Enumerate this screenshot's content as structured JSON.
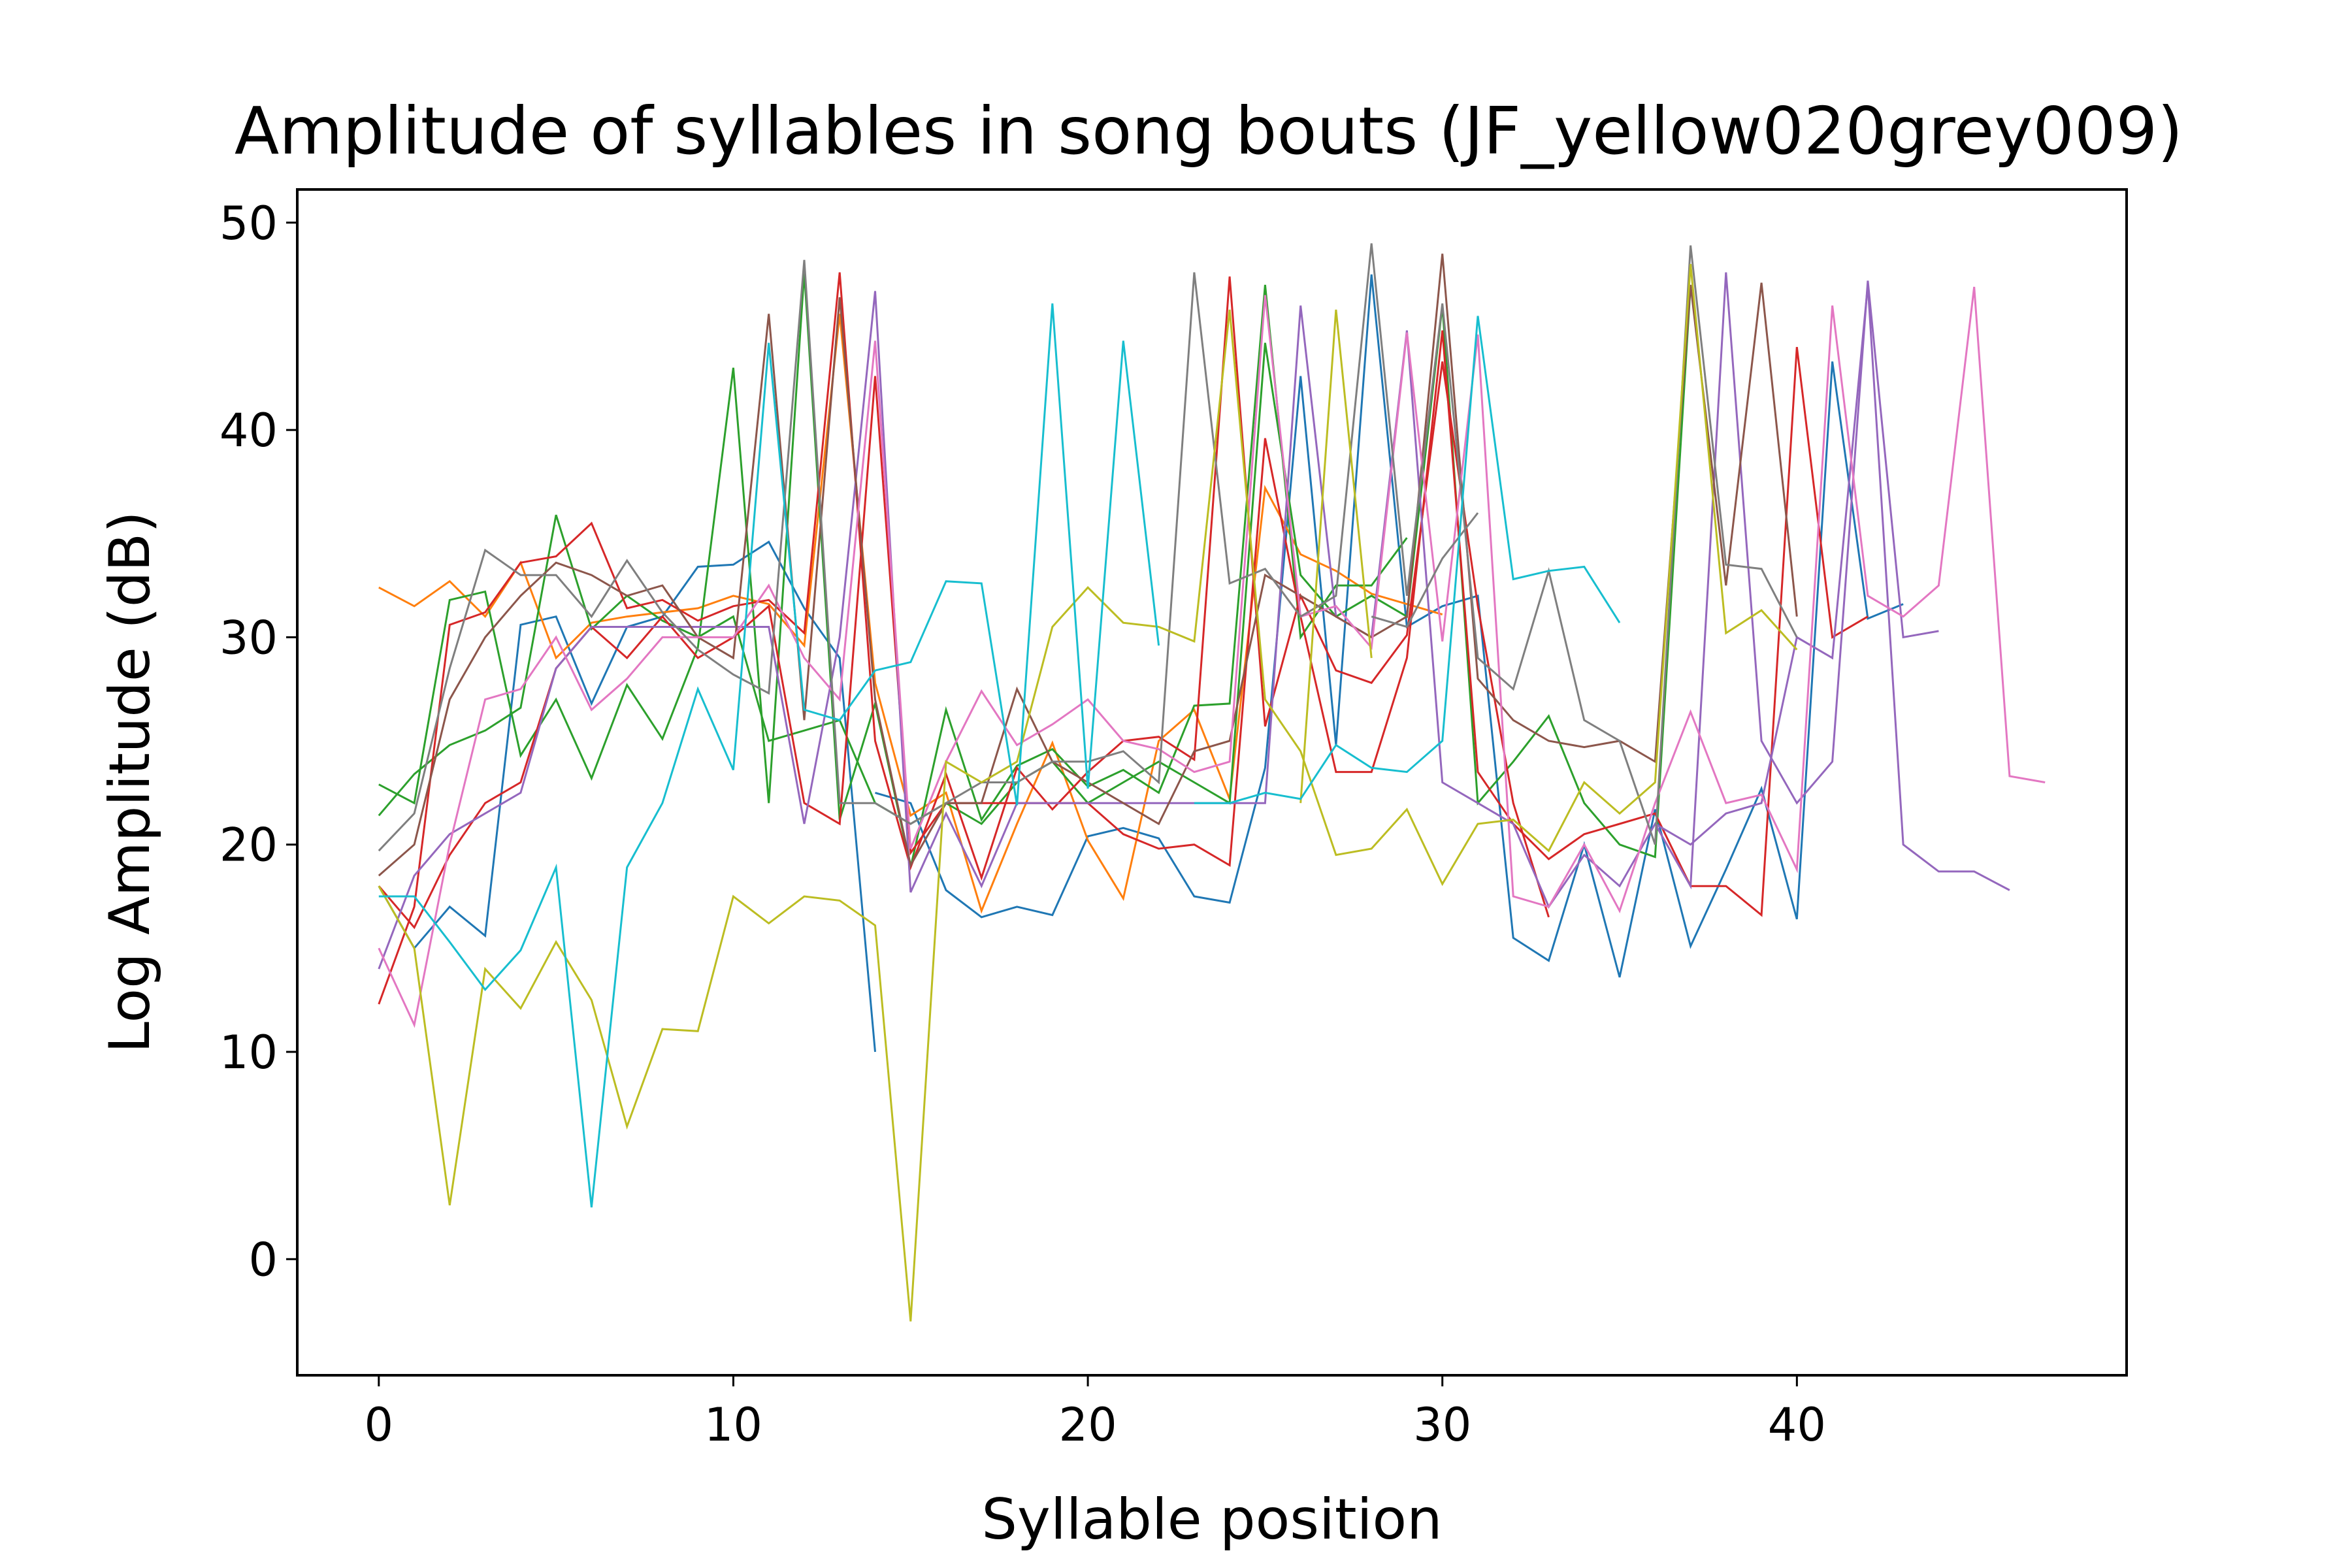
{
  "chart_data": {
    "type": "line",
    "title": "Amplitude of syllables in song bouts (JF_yellow020grey009)",
    "xlabel": "Syllable position",
    "ylabel": "Log Amplitude (dB)",
    "xlim": [
      -2.3,
      49.3
    ],
    "ylim": [
      -5.6,
      51.6
    ],
    "x_ticks": [
      0,
      10,
      20,
      30,
      40
    ],
    "y_ticks": [
      0,
      10,
      20,
      30,
      40,
      50
    ],
    "grid": false,
    "legend": "none",
    "series": [
      {
        "color": "#1f77b4",
        "x": [
          0,
          1,
          2,
          3,
          4,
          5,
          6,
          7,
          8,
          9,
          10,
          11,
          12,
          13,
          14
        ],
        "values": [
          18.0,
          15.0,
          17.0,
          15.6,
          30.6,
          31.0,
          26.8,
          30.5,
          31.0,
          33.4,
          33.5,
          34.6,
          31.4,
          29.0,
          10.0
        ]
      },
      {
        "color": "#1f77b4",
        "x": [
          14,
          15,
          16,
          17,
          18,
          19,
          20,
          21,
          22,
          23,
          24,
          25,
          26,
          27,
          28,
          29,
          30,
          31,
          32,
          33,
          34,
          35,
          36,
          37,
          38,
          39,
          40,
          41,
          42,
          43
        ],
        "values": [
          22.5,
          22.0,
          17.8,
          16.5,
          17.0,
          16.6,
          20.4,
          20.8,
          20.3,
          17.5,
          17.2,
          23.7,
          42.6,
          24.8,
          47.5,
          30.5,
          31.5,
          32.0,
          15.5,
          14.4,
          20.0,
          13.6,
          21.7,
          15.1,
          18.8,
          22.7,
          16.4,
          43.3,
          30.9,
          31.6
        ]
      },
      {
        "color": "#ff7f0e",
        "x": [
          0,
          1,
          2,
          3,
          4,
          5,
          6,
          7,
          8,
          9,
          10,
          11,
          12,
          13,
          14,
          15,
          16,
          17,
          18,
          19,
          20,
          21,
          22,
          23,
          24,
          25,
          26,
          27,
          28,
          29,
          30
        ],
        "values": [
          32.4,
          31.5,
          32.7,
          31.0,
          33.6,
          29.0,
          30.7,
          31.0,
          31.2,
          31.4,
          32.0,
          31.6,
          29.6,
          45.6,
          27.8,
          21.4,
          22.5,
          16.8,
          21.0,
          24.9,
          20.2,
          17.4,
          25.0,
          26.5,
          22.2,
          37.2,
          34.0,
          33.2,
          32.1,
          31.6,
          31.1
        ]
      },
      {
        "color": "#2ca02c",
        "x": [
          0,
          1,
          2,
          3,
          4,
          5,
          6,
          7,
          8,
          9,
          10,
          11,
          12,
          13,
          14,
          15,
          16,
          17,
          18,
          19,
          20,
          21,
          22,
          23,
          24,
          25,
          26,
          27,
          28,
          29
        ],
        "values": [
          22.9,
          22.0,
          31.8,
          32.2,
          24.3,
          27.0,
          23.2,
          27.7,
          25.1,
          29.5,
          43.0,
          22.0,
          47.6,
          21.2,
          26.8,
          18.9,
          26.5,
          21.2,
          23.8,
          24.6,
          22.8,
          23.6,
          22.5,
          26.7,
          26.8,
          47.0,
          30.0,
          32.5,
          32.5,
          34.8
        ]
      },
      {
        "color": "#2ca02c",
        "x": [
          0,
          1,
          2,
          3,
          4,
          5,
          6,
          7,
          8,
          9,
          10,
          11,
          12,
          13,
          14,
          15,
          16,
          17,
          18,
          19,
          20,
          21,
          22,
          23,
          24,
          25,
          26,
          27,
          28,
          29,
          30,
          31,
          32,
          33,
          34,
          35,
          36,
          37
        ],
        "values": [
          21.4,
          23.4,
          24.8,
          25.5,
          26.6,
          35.9,
          30.4,
          32.0,
          30.8,
          30.0,
          31.0,
          25.0,
          25.5,
          26.0,
          22.0,
          21.0,
          22.0,
          21.0,
          23.0,
          24.0,
          22.0,
          23.0,
          24.0,
          23.0,
          22.0,
          44.2,
          33.0,
          31.0,
          32.0,
          31.0,
          46.0,
          22.0,
          24.0,
          26.2,
          22.0,
          20.0,
          19.4,
          47.0
        ]
      },
      {
        "color": "#d62728",
        "x": [
          0,
          1,
          2,
          3,
          4,
          5,
          6,
          7,
          8,
          9,
          10,
          11,
          12,
          13,
          14,
          15,
          16,
          17,
          18,
          19,
          20,
          21,
          22,
          23,
          24,
          25,
          26,
          27,
          28,
          29,
          30,
          31,
          32,
          33
        ],
        "values": [
          12.3,
          17.0,
          30.6,
          31.2,
          33.6,
          33.9,
          35.5,
          31.4,
          31.8,
          30.8,
          31.5,
          31.8,
          30.2,
          47.6,
          25.0,
          18.9,
          23.4,
          18.4,
          23.7,
          21.7,
          23.5,
          25.0,
          25.2,
          24.1,
          47.4,
          25.7,
          32.0,
          28.4,
          27.8,
          30.1,
          43.3,
          31.5,
          22.0,
          16.5
        ]
      },
      {
        "color": "#d62728",
        "x": [
          0,
          1,
          2,
          3,
          4,
          5,
          6,
          7,
          8,
          9,
          10,
          11,
          12,
          13,
          14,
          15,
          16,
          17,
          18,
          19,
          20,
          21,
          22,
          23,
          24,
          25,
          26,
          27,
          28,
          29,
          30,
          31,
          32,
          33,
          34,
          35,
          36,
          37,
          38,
          39,
          40,
          41,
          42
        ],
        "values": [
          18.0,
          16.0,
          19.5,
          22.0,
          23.0,
          28.5,
          30.5,
          29.0,
          31.0,
          29.0,
          30.0,
          31.5,
          22.0,
          21.0,
          42.6,
          19.6,
          22.0,
          22.0,
          22.0,
          22.0,
          22.0,
          20.5,
          19.8,
          20.0,
          19.0,
          39.6,
          31.0,
          23.5,
          23.5,
          29.0,
          44.8,
          23.5,
          21.0,
          19.3,
          20.5,
          21.0,
          21.5,
          18.0,
          18.0,
          16.6,
          44.0,
          30.0,
          31.0
        ]
      },
      {
        "color": "#9467bd",
        "x": [
          0,
          1,
          2,
          3,
          4,
          5,
          6,
          7,
          8,
          9,
          10,
          11,
          12,
          13,
          14,
          15,
          16,
          17,
          18,
          19,
          20,
          21,
          22,
          23,
          24,
          25,
          26,
          27,
          28,
          29,
          30,
          31,
          32,
          33,
          34,
          35,
          36,
          37,
          38,
          39,
          40,
          41,
          42,
          43,
          44
        ],
        "values": [
          14.0,
          18.5,
          20.5,
          21.5,
          22.5,
          28.5,
          30.5,
          30.5,
          30.5,
          30.5,
          30.5,
          30.5,
          21.0,
          30.0,
          46.7,
          17.7,
          21.5,
          18.0,
          22.0,
          22.0,
          22.0,
          22.0,
          22.0,
          22.0,
          22.0,
          22.0,
          46.0,
          31.0,
          30.0,
          44.8,
          23.0,
          22.0,
          21.0,
          17.0,
          19.5,
          18.0,
          21.0,
          18.0,
          47.6,
          25.0,
          22.0,
          24.0,
          47.2,
          30.0,
          30.3
        ]
      },
      {
        "color": "#9467bd",
        "x": [
          36,
          37,
          38,
          39,
          40,
          41,
          42,
          43,
          44,
          45,
          46
        ],
        "values": [
          21.0,
          20.0,
          21.5,
          22.0,
          30.0,
          29.0,
          47.0,
          20.0,
          18.7,
          18.7,
          17.8
        ]
      },
      {
        "color": "#8c564b",
        "x": [
          0,
          1,
          2,
          3,
          4,
          5,
          6,
          7,
          8,
          9,
          10,
          11,
          12,
          13,
          14,
          15,
          16,
          17,
          18,
          19,
          20,
          21,
          22,
          23,
          24,
          25,
          26,
          27,
          28,
          29,
          30,
          31,
          32,
          33,
          34,
          35,
          36,
          37,
          38,
          39,
          40
        ],
        "values": [
          18.5,
          20.0,
          27.0,
          30.0,
          32.0,
          33.6,
          33.0,
          32.0,
          32.5,
          30.0,
          29.0,
          45.6,
          26.0,
          46.4,
          27.0,
          19.0,
          22.0,
          22.0,
          27.5,
          24.0,
          23.0,
          22.0,
          21.0,
          24.5,
          25.0,
          33.0,
          32.0,
          31.0,
          30.0,
          31.0,
          48.5,
          28.0,
          26.0,
          25.0,
          24.7,
          25.0,
          24.0,
          47.0,
          32.5,
          47.1,
          31.0
        ]
      },
      {
        "color": "#e377c2",
        "x": [
          0,
          1,
          2,
          3,
          4,
          5,
          6,
          7,
          8,
          9,
          10,
          11,
          12,
          13,
          14,
          15,
          16,
          17,
          18,
          19,
          20,
          21,
          22,
          23,
          24,
          25,
          26,
          27,
          28,
          29,
          30,
          31,
          32,
          33,
          34,
          35,
          36,
          37,
          38,
          39,
          40,
          41,
          42,
          43,
          44,
          45,
          46,
          47
        ],
        "values": [
          15.0,
          11.3,
          20.0,
          27.0,
          27.5,
          30.0,
          26.5,
          28.0,
          30.0,
          30.0,
          30.0,
          32.5,
          29.0,
          27.0,
          44.3,
          19.8,
          24.0,
          27.4,
          24.8,
          25.8,
          27.0,
          25.0,
          24.6,
          23.5,
          24.0,
          46.5,
          31.0,
          31.5,
          29.5,
          44.7,
          29.8,
          44.6,
          17.5,
          17.0,
          20.0,
          16.8,
          22.0,
          26.4,
          22.0,
          22.4,
          18.8,
          46.0,
          32.0,
          31.0,
          32.5,
          46.9,
          23.3,
          23.0
        ]
      },
      {
        "color": "#7f7f7f",
        "x": [
          0,
          1,
          2,
          3,
          4,
          5,
          6,
          7,
          8,
          9,
          10,
          11,
          12,
          13,
          14,
          15,
          16,
          17,
          18,
          19,
          20,
          21,
          22,
          23,
          24,
          25,
          26,
          27,
          28,
          29,
          30,
          31,
          32,
          33,
          34,
          35,
          36,
          37,
          38,
          39,
          40
        ],
        "values": [
          19.7,
          21.5,
          28.5,
          34.2,
          33.0,
          33.0,
          31.0,
          33.7,
          31.2,
          29.4,
          28.2,
          27.3,
          48.2,
          22.0,
          22.0,
          21.0,
          22.0,
          23.0,
          23.0,
          24.0,
          24.0,
          24.5,
          23.0,
          47.6,
          32.6,
          33.3,
          31.0,
          32.0,
          49.0,
          32.0,
          46.1,
          29.0,
          27.5,
          33.2,
          26.0,
          25.0,
          20.0,
          48.9,
          33.5,
          33.3,
          30.0
        ]
      },
      {
        "color": "#7f7f7f",
        "x": [
          28,
          29,
          30,
          31
        ],
        "values": [
          31.0,
          30.5,
          33.8,
          36.0
        ]
      },
      {
        "color": "#bcbd22",
        "x": [
          0,
          1,
          2,
          3,
          4,
          5,
          6,
          7,
          8,
          9,
          10,
          11,
          12,
          13,
          14,
          15,
          16,
          17,
          18,
          19,
          20,
          21,
          22,
          23,
          24,
          25,
          26,
          27,
          28,
          29,
          30,
          31,
          32,
          33,
          34,
          35,
          36,
          37,
          38,
          39,
          40
        ],
        "values": [
          18.0,
          15.0,
          2.6,
          14.0,
          12.1,
          15.3,
          12.5,
          6.4,
          11.1,
          11.0,
          17.5,
          16.2,
          17.5,
          17.3,
          16.1,
          -3.0,
          24.0,
          23.0,
          24.0,
          30.5,
          32.4,
          30.7,
          30.5,
          29.8,
          45.8,
          27.0,
          24.5,
          19.5,
          19.8,
          21.7,
          18.1,
          21.0,
          21.2,
          19.7,
          23.0,
          21.5,
          23.0,
          48.0,
          30.2,
          31.3,
          29.4
        ]
      },
      {
        "color": "#bcbd22",
        "x": [
          26,
          27,
          28
        ],
        "values": [
          22.0,
          45.8,
          29.0
        ]
      },
      {
        "color": "#17becf",
        "x": [
          0,
          1,
          2,
          3,
          4,
          5,
          6,
          7,
          8,
          9,
          10,
          11,
          12,
          13,
          14,
          15,
          16,
          17,
          18,
          19,
          20,
          21,
          22
        ],
        "values": [
          17.5,
          17.5,
          15.3,
          13.0,
          14.9,
          18.9,
          2.5,
          18.9,
          22.0,
          27.5,
          23.6,
          44.2,
          26.5,
          26.0,
          28.4,
          28.8,
          32.7,
          32.6,
          21.9,
          46.1,
          22.7,
          44.3,
          29.6
        ]
      },
      {
        "color": "#17becf",
        "x": [
          23,
          24,
          25,
          26,
          27,
          28,
          29,
          30,
          31,
          32,
          33,
          34,
          35
        ],
        "values": [
          22.0,
          22.0,
          22.5,
          22.2,
          24.8,
          23.7,
          23.5,
          25.0,
          45.5,
          32.8,
          33.2,
          33.4,
          30.7
        ]
      }
    ]
  }
}
